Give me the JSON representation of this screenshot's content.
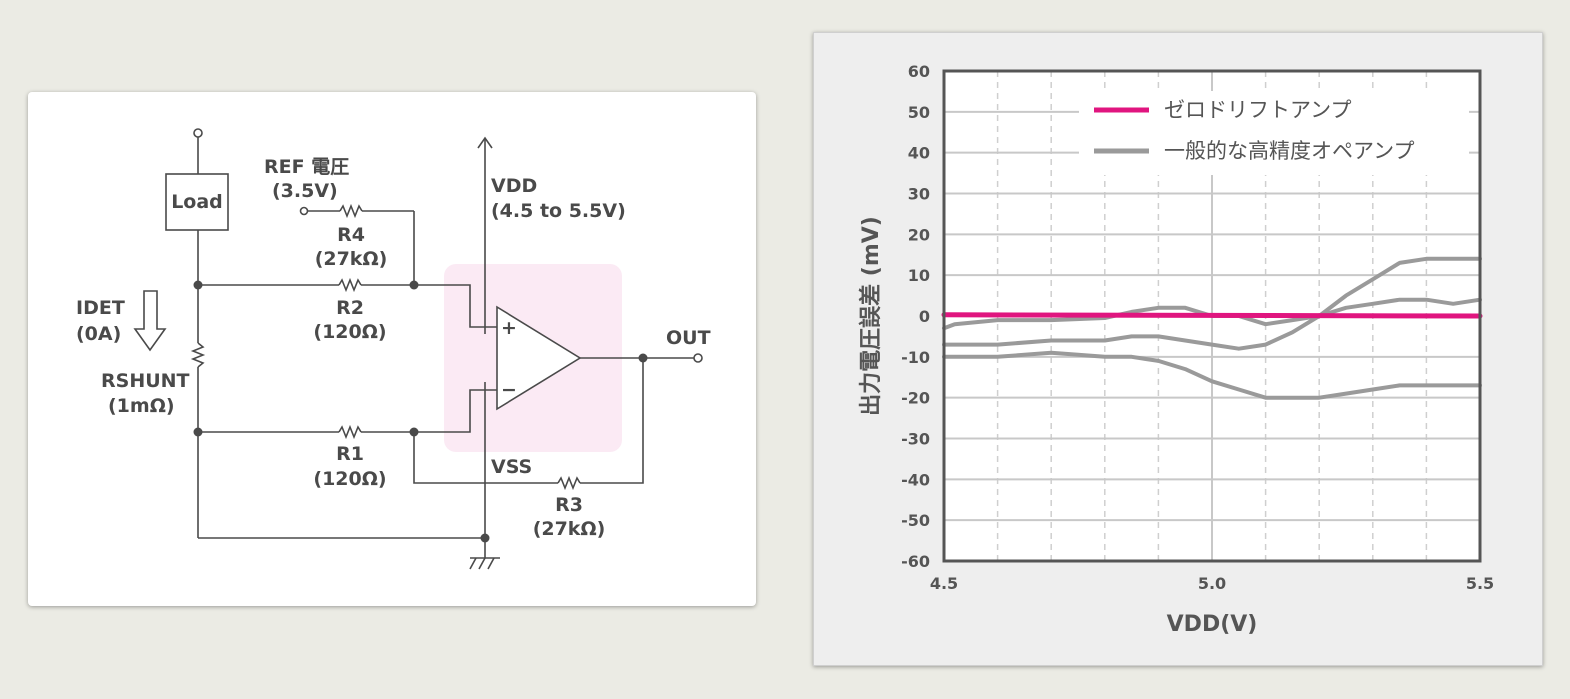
{
  "circuit": {
    "load_label": "Load",
    "ref_label": "REF 電圧",
    "ref_value": "(3.5V)",
    "vdd_label": "VDD",
    "vdd_value": "(4.5 to 5.5V)",
    "r4_name": "R4",
    "r4_value": "(27kΩ)",
    "r2_name": "R2",
    "r2_value": "(120Ω)",
    "r1_name": "R1",
    "r1_value": "(120Ω)",
    "r3_name": "R3",
    "r3_value": "(27kΩ)",
    "idet_label": "IDET",
    "idet_value": "(0A)",
    "rshunt_label": "RSHUNT",
    "rshunt_value": "(1mΩ)",
    "vss_label": "VSS",
    "out_label": "OUT",
    "plus_sign": "+",
    "minus_sign": "−",
    "highlight_color": "#fbeaf4",
    "wire_color": "#4a4a4a"
  },
  "chart_data": {
    "type": "line",
    "xlabel": "VDD(V)",
    "ylabel": "出力電圧誤差 (mV)",
    "xlim": [
      4.5,
      5.5
    ],
    "ylim": [
      -60,
      60
    ],
    "x_ticks": [
      "4.5",
      "5.0",
      "5.5"
    ],
    "x_tick_values": [
      4.5,
      5.0,
      5.5
    ],
    "y_ticks": [
      "60",
      "50",
      "40",
      "30",
      "20",
      "10",
      "0",
      "-10",
      "-20",
      "-30",
      "-40",
      "-50",
      "-60"
    ],
    "y_tick_values": [
      60,
      50,
      40,
      30,
      20,
      10,
      0,
      -10,
      -20,
      -30,
      -40,
      -50,
      -60
    ],
    "grid": true,
    "legend_position": "top-right",
    "legend": [
      "ゼロドリフトアンプ",
      "一般的な高精度オペアンプ"
    ],
    "series": [
      {
        "name": "ゼロドリフトアンプ",
        "color": "#e0157f",
        "x": [
          4.5,
          5.5
        ],
        "y": [
          0.3,
          0
        ]
      },
      {
        "name": "一般的な高精度オペアンプ",
        "color": "#9a9a9a",
        "x": [
          4.5,
          4.52,
          4.6,
          4.7,
          4.8,
          4.85,
          4.9,
          4.95,
          5.0,
          5.05,
          5.1,
          5.15,
          5.2,
          5.25,
          5.3,
          5.35,
          5.4,
          5.45,
          5.5
        ],
        "y": [
          -3,
          -2,
          -1,
          -1,
          -0.5,
          1,
          2,
          2,
          0,
          0,
          -2,
          -1,
          0,
          2,
          3,
          4,
          4,
          3,
          4
        ]
      },
      {
        "name": "一般的な高精度オペアンプ",
        "color": "#9a9a9a",
        "x": [
          4.5,
          4.6,
          4.7,
          4.8,
          4.85,
          4.9,
          4.95,
          5.0,
          5.05,
          5.1,
          5.15,
          5.2,
          5.25,
          5.3,
          5.35,
          5.4,
          5.5
        ],
        "y": [
          -7,
          -7,
          -6,
          -6,
          -5,
          -5,
          -6,
          -7,
          -8,
          -7,
          -4,
          0,
          5,
          9,
          13,
          14,
          14
        ]
      },
      {
        "name": "一般的な高精度オペアンプ",
        "color": "#9a9a9a",
        "x": [
          4.5,
          4.6,
          4.7,
          4.8,
          4.85,
          4.9,
          4.95,
          5.0,
          5.05,
          5.1,
          5.15,
          5.2,
          5.25,
          5.3,
          5.35,
          5.4,
          5.5
        ],
        "y": [
          -10,
          -10,
          -9,
          -10,
          -10,
          -11,
          -13,
          -16,
          -18,
          -20,
          -20,
          -20,
          -19,
          -18,
          -17,
          -17,
          -17
        ]
      }
    ]
  }
}
